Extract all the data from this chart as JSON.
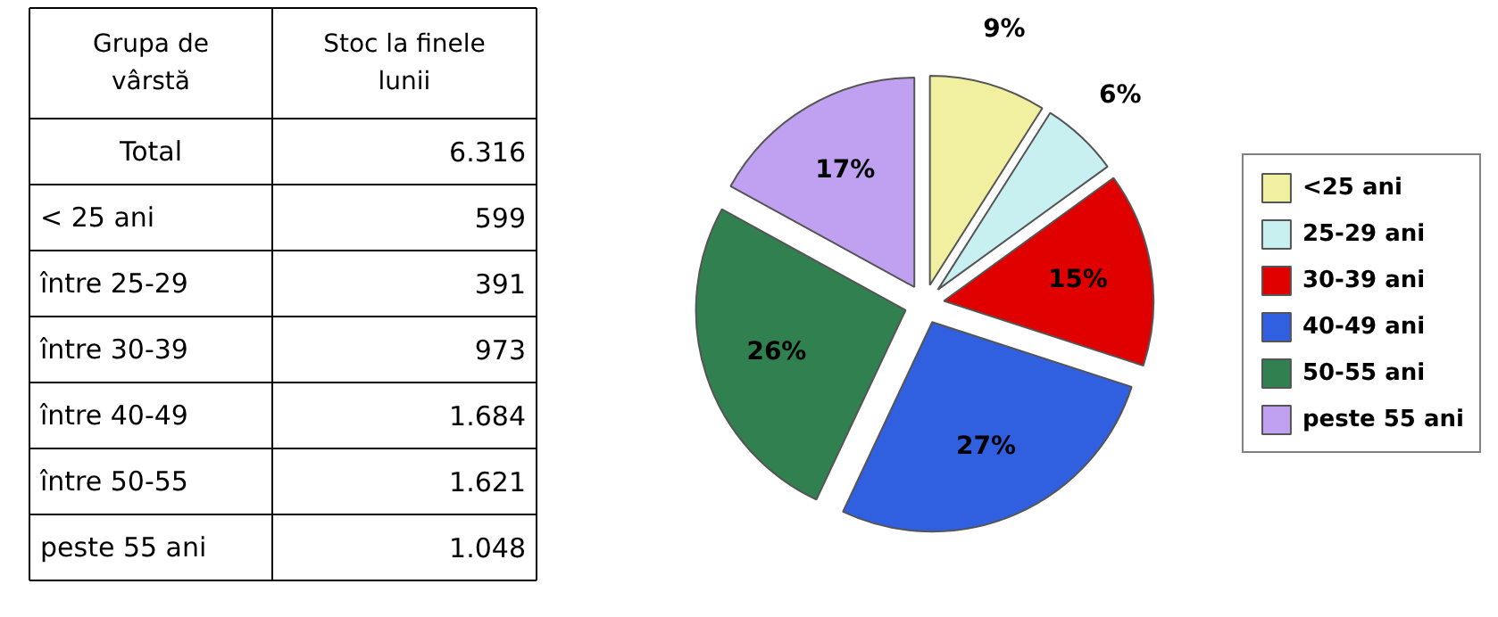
{
  "chart_data": [
    {
      "type": "other",
      "annotations": [
        "Grupa de vârstă",
        "Stoc la finele lunii"
      ],
      "categories": [
        "Total",
        "< 25 ani",
        "între 25-29",
        "între 30-39",
        "între 40-49",
        "între 50-55",
        "peste 55 ani"
      ],
      "value_labels": [
        "6.316",
        "599",
        "391",
        "973",
        "1.684",
        "1.621",
        "1.048"
      ]
    },
    {
      "type": "pie",
      "categories": [
        "<25 ani",
        "25-29 ani",
        "30-39 ani",
        "40-49 ani",
        "50-55 ani",
        "peste 55 ani"
      ],
      "values": [
        9,
        6,
        15,
        27,
        26,
        17
      ],
      "colors": [
        "#f0f0a0",
        "#c8f0f0",
        "#e00000",
        "#3060e0",
        "#308050",
        "#c0a0f0"
      ],
      "value_labels": [
        "9%",
        "6%",
        "15%",
        "27%",
        "26%",
        "17%"
      ],
      "legend": "right"
    }
  ]
}
